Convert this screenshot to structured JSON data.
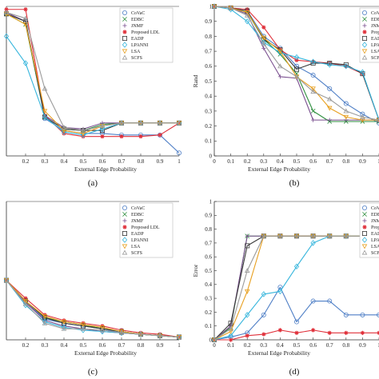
{
  "chart_data": [
    {
      "type": "line",
      "panel_label": "(a)",
      "xlabel": "External Edge Probability",
      "ylabel": "",
      "xlim": [
        0.1,
        1
      ],
      "ylim": [
        0,
        1
      ],
      "xticks": [
        "0.2",
        "0.3",
        "0.4",
        "0.5",
        "0.6",
        "0.7",
        "0.8",
        "0.9",
        "1"
      ],
      "yticks": [],
      "x": [
        0.1,
        0.2,
        0.3,
        0.4,
        0.5,
        0.6,
        0.7,
        0.8,
        0.9,
        1.0
      ],
      "legend": "top-right",
      "series": [
        {
          "name": "CoVaC",
          "values": [
            0.95,
            0.9,
            0.25,
            0.17,
            0.15,
            0.15,
            0.14,
            0.14,
            0.14,
            0.02
          ]
        },
        {
          "name": "EDBC",
          "values": [
            0.95,
            0.88,
            0.26,
            0.18,
            0.17,
            0.21,
            0.22,
            0.22,
            0.22,
            0.22
          ]
        },
        {
          "name": "JNMF",
          "values": [
            0.96,
            0.9,
            0.27,
            0.19,
            0.18,
            0.22,
            0.22,
            0.22,
            0.22,
            0.22
          ]
        },
        {
          "name": "Proposed LDL",
          "values": [
            0.98,
            0.98,
            0.27,
            0.15,
            0.13,
            0.13,
            0.13,
            0.13,
            0.14,
            0.22
          ]
        },
        {
          "name": "EADP",
          "values": [
            0.95,
            0.9,
            0.26,
            0.18,
            0.17,
            0.17,
            0.22,
            0.22,
            0.22,
            0.22
          ]
        },
        {
          "name": "LPANNI",
          "values": [
            0.8,
            0.62,
            0.26,
            0.16,
            0.14,
            0.18,
            0.22,
            0.22,
            0.22,
            0.22
          ]
        },
        {
          "name": "LSA",
          "values": [
            0.95,
            0.88,
            0.3,
            0.17,
            0.15,
            0.2,
            0.22,
            0.22,
            0.22,
            0.22
          ]
        },
        {
          "name": "SCFS",
          "values": [
            0.96,
            0.92,
            0.45,
            0.19,
            0.17,
            0.2,
            0.22,
            0.22,
            0.22,
            0.22
          ]
        }
      ]
    },
    {
      "type": "line",
      "panel_label": "(b)",
      "xlabel": "External Edge Probability",
      "ylabel": "Rand",
      "xlim": [
        0,
        1
      ],
      "ylim": [
        0,
        1
      ],
      "xticks": [
        "0",
        "0.1",
        "0.2",
        "0.3",
        "0.4",
        "0.5",
        "0.6",
        "0.7",
        "0.8",
        "0.9",
        "1"
      ],
      "yticks": [
        "0",
        "0.1",
        "0.2",
        "0.3",
        "0.4",
        "0.5",
        "0.6",
        "0.7",
        "0.8",
        "0.9",
        "1"
      ],
      "x": [
        0,
        0.1,
        0.2,
        0.3,
        0.4,
        0.5,
        0.6,
        0.7,
        0.8,
        0.9,
        1.0
      ],
      "legend": "top-right",
      "series": [
        {
          "name": "CoVaC",
          "values": [
            1.0,
            0.99,
            0.97,
            0.8,
            0.72,
            0.6,
            0.54,
            0.45,
            0.35,
            0.28,
            0.22
          ]
        },
        {
          "name": "EDBC",
          "values": [
            1.0,
            0.99,
            0.96,
            0.78,
            0.68,
            0.55,
            0.3,
            0.23,
            0.23,
            0.23,
            0.23
          ]
        },
        {
          "name": "JNMF",
          "values": [
            1.0,
            0.99,
            0.95,
            0.72,
            0.53,
            0.52,
            0.24,
            0.24,
            0.24,
            0.24,
            0.24
          ]
        },
        {
          "name": "Proposed LDL",
          "values": [
            1.0,
            0.99,
            0.98,
            0.86,
            0.71,
            0.64,
            0.63,
            0.62,
            0.6,
            0.55,
            0.24
          ]
        },
        {
          "name": "EADP",
          "values": [
            1.0,
            0.99,
            0.97,
            0.78,
            0.71,
            0.58,
            0.62,
            0.62,
            0.61,
            0.55,
            0.24
          ]
        },
        {
          "name": "LPANNI",
          "values": [
            1.0,
            0.98,
            0.9,
            0.76,
            0.69,
            0.66,
            0.63,
            0.61,
            0.6,
            0.56,
            0.24
          ]
        },
        {
          "name": "LSA",
          "values": [
            1.0,
            0.99,
            0.96,
            0.79,
            0.7,
            0.53,
            0.45,
            0.32,
            0.26,
            0.24,
            0.24
          ]
        },
        {
          "name": "SCFS",
          "values": [
            1.0,
            0.99,
            0.94,
            0.75,
            0.6,
            0.53,
            0.43,
            0.38,
            0.3,
            0.26,
            0.24
          ]
        }
      ]
    },
    {
      "type": "line",
      "panel_label": "(c)",
      "xlabel": "External Edge Probability",
      "ylabel": "",
      "xlim": [
        0.1,
        1
      ],
      "ylim": [
        0,
        1
      ],
      "xticks": [
        "0.2",
        "0.3",
        "0.4",
        "0.5",
        "0.6",
        "0.7",
        "0.8",
        "0.9",
        "1"
      ],
      "yticks": [],
      "x": [
        0.1,
        0.2,
        0.3,
        0.4,
        0.5,
        0.6,
        0.7,
        0.8,
        0.9,
        1.0
      ],
      "legend": "top-right",
      "series": [
        {
          "name": "CoVaC",
          "values": [
            0.43,
            0.27,
            0.15,
            0.12,
            0.1,
            0.08,
            0.05,
            0.04,
            0.03,
            0.02
          ]
        },
        {
          "name": "EDBC",
          "values": [
            0.43,
            0.28,
            0.16,
            0.13,
            0.11,
            0.08,
            0.06,
            0.04,
            0.03,
            0.02
          ]
        },
        {
          "name": "JNMF",
          "values": [
            0.43,
            0.27,
            0.14,
            0.1,
            0.08,
            0.06,
            0.05,
            0.04,
            0.03,
            0.02
          ]
        },
        {
          "name": "Proposed LDL",
          "values": [
            0.43,
            0.3,
            0.18,
            0.14,
            0.12,
            0.1,
            0.07,
            0.05,
            0.04,
            0.02
          ]
        },
        {
          "name": "EADP",
          "values": [
            0.43,
            0.28,
            0.16,
            0.12,
            0.1,
            0.08,
            0.06,
            0.04,
            0.03,
            0.02
          ]
        },
        {
          "name": "LPANNI",
          "values": [
            0.43,
            0.25,
            0.13,
            0.09,
            0.07,
            0.06,
            0.05,
            0.04,
            0.03,
            0.02
          ]
        },
        {
          "name": "LSA",
          "values": [
            0.43,
            0.28,
            0.17,
            0.13,
            0.11,
            0.09,
            0.06,
            0.04,
            0.03,
            0.02
          ]
        },
        {
          "name": "SCFS",
          "values": [
            0.43,
            0.26,
            0.12,
            0.08,
            0.08,
            0.07,
            0.05,
            0.04,
            0.03,
            0.02
          ]
        }
      ]
    },
    {
      "type": "line",
      "panel_label": "(d)",
      "xlabel": "External Edge Probability",
      "ylabel": "Error",
      "xlim": [
        0,
        1
      ],
      "ylim": [
        0,
        1
      ],
      "xticks": [
        "0",
        "0.1",
        "0.2",
        "0.3",
        "0.4",
        "0.5",
        "0.6",
        "0.7",
        "0.8",
        "0.9",
        "1"
      ],
      "yticks": [
        "0",
        "0.1",
        "0.2",
        "0.3",
        "0.4",
        "0.5",
        "0.6",
        "0.7",
        "0.8",
        "0.9",
        "1"
      ],
      "x": [
        0,
        0.1,
        0.2,
        0.3,
        0.4,
        0.5,
        0.6,
        0.7,
        0.8,
        0.9,
        1.0
      ],
      "legend": "top-right",
      "series": [
        {
          "name": "CoVaC",
          "values": [
            0.0,
            0.02,
            0.05,
            0.18,
            0.38,
            0.13,
            0.28,
            0.28,
            0.18,
            0.18,
            0.18
          ]
        },
        {
          "name": "EDBC",
          "values": [
            0.0,
            0.09,
            0.75,
            0.75,
            0.75,
            0.75,
            0.75,
            0.75,
            0.75,
            0.75,
            0.75
          ]
        },
        {
          "name": "JNMF",
          "values": [
            0.0,
            0.1,
            0.75,
            0.75,
            0.75,
            0.75,
            0.75,
            0.75,
            0.75,
            0.75,
            0.75
          ]
        },
        {
          "name": "Proposed LDL",
          "values": [
            0.0,
            0.0,
            0.03,
            0.04,
            0.07,
            0.05,
            0.07,
            0.05,
            0.05,
            0.05,
            0.05
          ]
        },
        {
          "name": "EADP",
          "values": [
            0.0,
            0.12,
            0.68,
            0.75,
            0.75,
            0.75,
            0.75,
            0.75,
            0.75,
            0.75,
            0.75
          ]
        },
        {
          "name": "LPANNI",
          "values": [
            0.0,
            0.03,
            0.18,
            0.33,
            0.35,
            0.53,
            0.7,
            0.75,
            0.75,
            0.75,
            0.75
          ]
        },
        {
          "name": "LSA",
          "values": [
            0.0,
            0.06,
            0.35,
            0.75,
            0.75,
            0.75,
            0.75,
            0.75,
            0.75,
            0.75,
            0.75
          ]
        },
        {
          "name": "SCFS",
          "values": [
            0.0,
            0.08,
            0.5,
            0.75,
            0.75,
            0.75,
            0.75,
            0.75,
            0.75,
            0.75,
            0.75
          ]
        }
      ]
    }
  ],
  "series_styles": [
    {
      "name": "CoVaC",
      "color": "#4f7fc6",
      "marker": "circle"
    },
    {
      "name": "EDBC",
      "color": "#2f8f3f",
      "marker": "x"
    },
    {
      "name": "JNMF",
      "color": "#7a4f8f",
      "marker": "plus"
    },
    {
      "name": "Proposed LDL",
      "color": "#e0303a",
      "marker": "star"
    },
    {
      "name": "EADP",
      "color": "#3a3a3a",
      "marker": "square"
    },
    {
      "name": "LPANNI",
      "color": "#35b5dc",
      "marker": "diamond"
    },
    {
      "name": "LSA",
      "color": "#e8a020",
      "marker": "triangle-down"
    },
    {
      "name": "SCFS",
      "color": "#9a9a9a",
      "marker": "triangle-up"
    }
  ]
}
